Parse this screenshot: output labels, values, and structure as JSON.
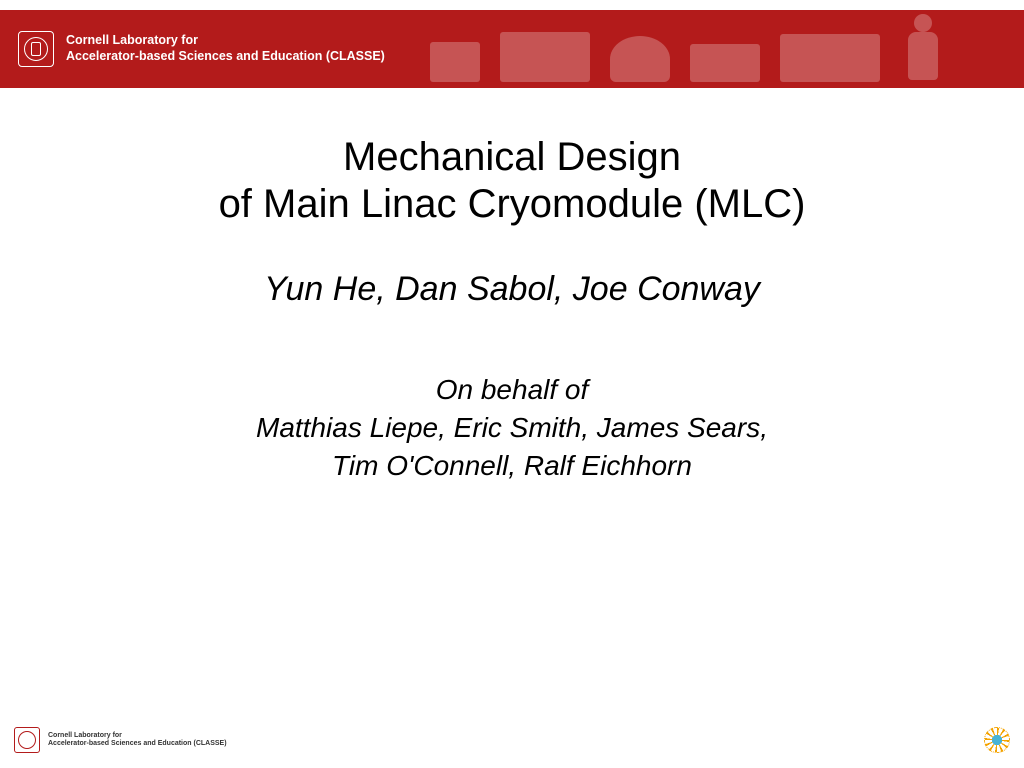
{
  "colors": {
    "header_bg": "#b31b1b",
    "header_text": "#ffffff",
    "body_bg": "#ffffff",
    "title_color": "#000000",
    "footer_seal_color": "#b31b1b"
  },
  "header": {
    "lab_line1": "Cornell Laboratory for",
    "lab_line2": "Accelerator-based Sciences and Education (CLASSE)"
  },
  "title": {
    "line1": "Mechanical Design",
    "line2": "of Main Linac Cryomodule (MLC)",
    "fontsize": 40
  },
  "authors": {
    "text": "Yun He, Dan Sabol, Joe Conway",
    "fontsize": 34
  },
  "behalf": {
    "intro": "On behalf of",
    "names_line1": "Matthias Liepe, Eric Smith, James Sears,",
    "names_line2": "Tim O'Connell, Ralf  Eichhorn",
    "fontsize": 28
  },
  "footer": {
    "lab_line1": "Cornell Laboratory for",
    "lab_line2": "Accelerator-based Sciences and Education (CLASSE)"
  }
}
